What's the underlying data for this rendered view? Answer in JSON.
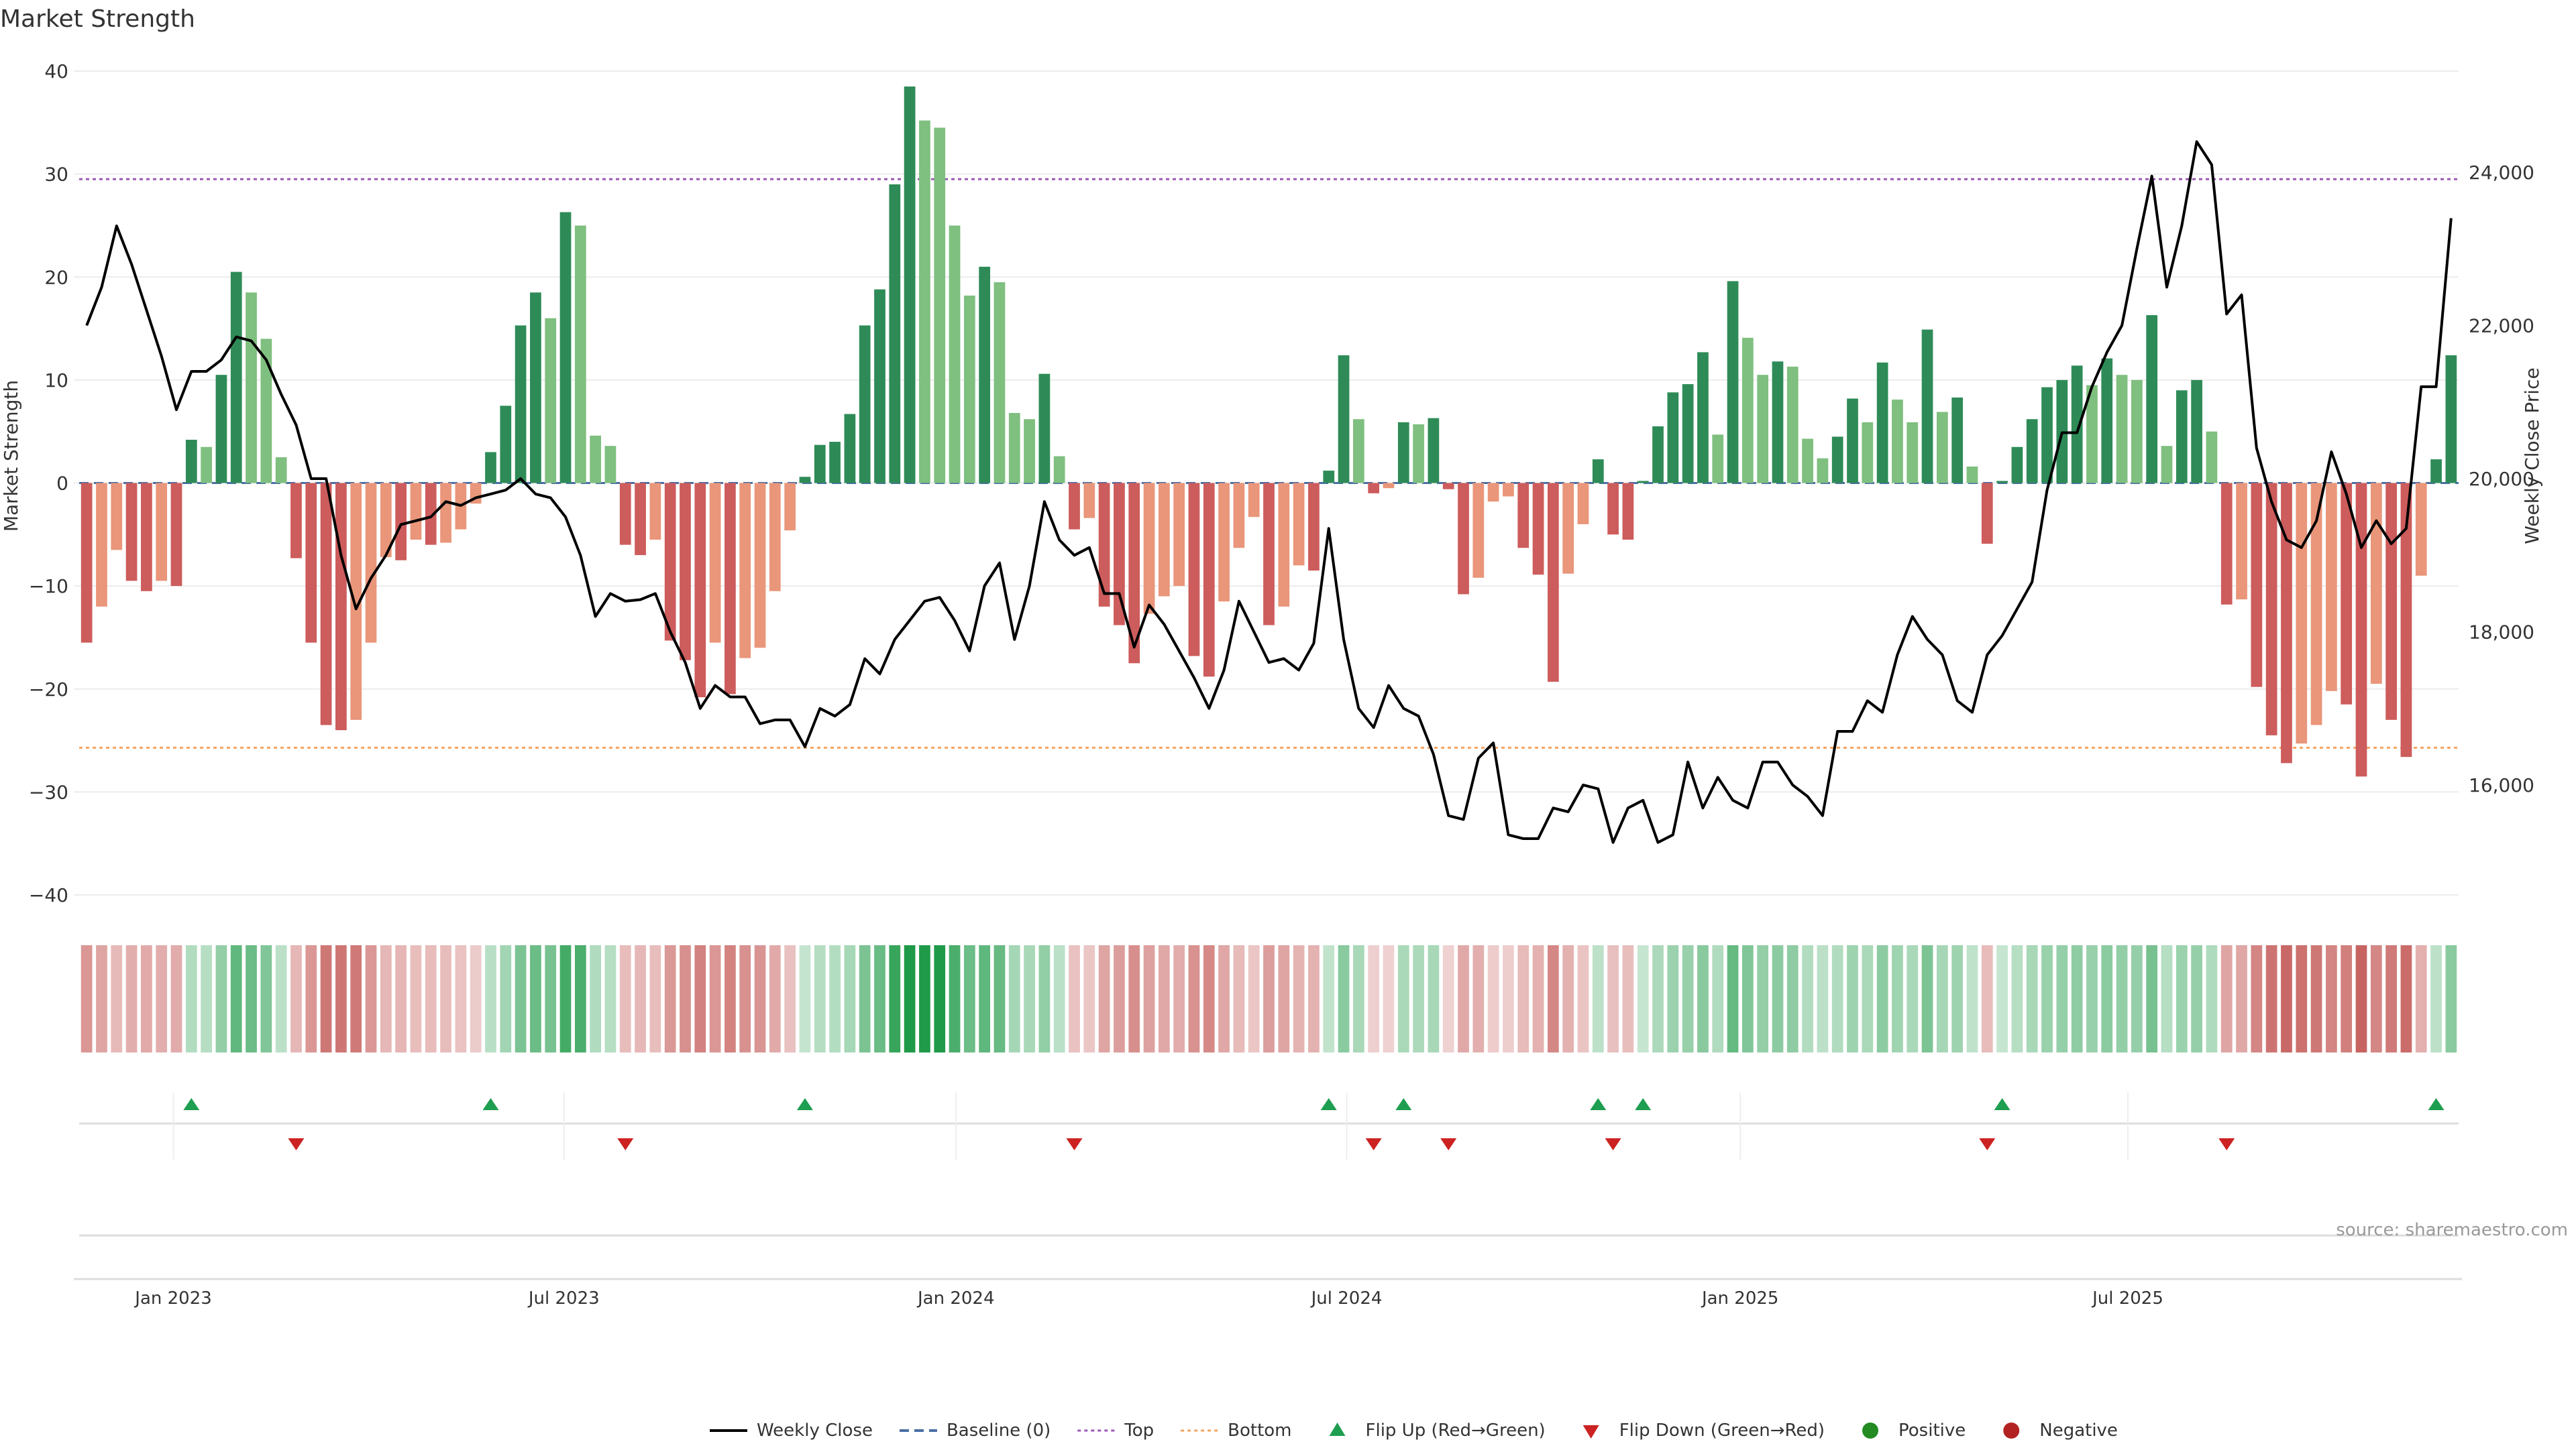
{
  "chart_data": {
    "type": "bar",
    "title": "Market Strength",
    "ylabel": "Market Strength",
    "y2label": "Weekly Close Price",
    "ylim": [
      -42,
      42
    ],
    "y2lim": [
      14500,
      25500
    ],
    "yticks": [
      40,
      30,
      20,
      10,
      0,
      -10,
      -20,
      -30,
      -40
    ],
    "yticklabels": [
      "40",
      "30",
      "20",
      "10",
      "0",
      "−10",
      "−20",
      "−30",
      "−40"
    ],
    "y2ticks": [
      16000,
      18000,
      20000,
      22000,
      24000
    ],
    "y2ticklabels": [
      "16,000",
      "18,000",
      "20,000",
      "22,000",
      "24,000"
    ],
    "xticks": [
      {
        "label": "Jan 2023",
        "index": 6.3
      },
      {
        "label": "Jul 2023",
        "index": 32.4
      },
      {
        "label": "Jan 2024",
        "index": 58.6
      },
      {
        "label": "Jul 2024",
        "index": 84.7
      },
      {
        "label": "Jan 2025",
        "index": 111.0
      },
      {
        "label": "Jul 2025",
        "index": 136.9
      }
    ],
    "top_threshold": 29.5,
    "bottom_threshold": -25.7,
    "colors": {
      "pos_strong": "#2e8b57",
      "pos_weak": "#7fbf7f",
      "neg_strong": "#cd5c5c",
      "neg_weak": "#e9967a",
      "close_line": "#000000",
      "baseline": "#4a6fa5",
      "top": "#9b59b6",
      "bottom": "#f4a460",
      "flip_up": "#1e9e50",
      "flip_down": "#cc2222"
    },
    "strength": [
      -15.5,
      -12,
      -6.5,
      -9.5,
      -10.5,
      -9.5,
      -10,
      4.2,
      3.5,
      10.5,
      20.5,
      18.5,
      14,
      2.5,
      -7.3,
      -15.5,
      -23.5,
      -24,
      -23,
      -15.5,
      -7.2,
      -7.5,
      -5.5,
      -6,
      -5.8,
      -4.5,
      -2,
      3,
      7.5,
      15.3,
      18.5,
      16,
      26.3,
      25,
      4.6,
      3.6,
      -6,
      -7,
      -5.5,
      -15.3,
      -17.2,
      -20.8,
      -15.5,
      -20.5,
      -17,
      -16,
      -10.5,
      -4.6,
      0.6,
      3.7,
      4,
      6.7,
      15.3,
      18.8,
      29,
      38.5,
      35.2,
      34.5,
      25,
      18.2,
      21,
      19.5,
      6.8,
      6.2,
      10.6,
      2.6,
      -4.5,
      -3.4,
      -12,
      -13.8,
      -17.5,
      -12.7,
      -11,
      -10,
      -16.8,
      -18.8,
      -11.5,
      -6.3,
      -3.3,
      -13.8,
      -12,
      -8,
      -8.5,
      1.2,
      12.4,
      6.2,
      -1,
      -0.5,
      5.9,
      5.7,
      6.3,
      -0.6,
      -10.8,
      -9.2,
      -1.8,
      -1.3,
      -6.3,
      -8.9,
      -19.3,
      -8.8,
      -4,
      2.3,
      -5,
      -5.5,
      0.2,
      5.5,
      8.8,
      9.6,
      12.7,
      4.7,
      19.6,
      14.1,
      10.5,
      11.8,
      11.3,
      4.3,
      2.4,
      4.5,
      8.2,
      5.9,
      11.7,
      8.1,
      5.9,
      14.9,
      6.9,
      8.3,
      1.6,
      -5.9,
      0.2,
      3.5,
      6.2,
      9.3,
      10,
      11.4,
      9.5,
      12.1,
      10.5,
      10,
      16.3,
      3.6,
      9,
      10,
      5,
      -11.8,
      -11.3,
      -19.8,
      -24.5,
      -27.2,
      -25.3,
      -23.5,
      -20.2,
      -21.5,
      -28.5,
      -19.5,
      -23,
      -26.6,
      -9,
      2.3,
      12.4
    ],
    "close": [
      22000,
      22500,
      23300,
      22800,
      22200,
      21600,
      20900,
      21400,
      21400,
      21550,
      21850,
      21800,
      21550,
      21100,
      20700,
      20000,
      20000,
      19000,
      18300,
      18700,
      19000,
      19400,
      19450,
      19500,
      19700,
      19650,
      19750,
      19800,
      19850,
      20000,
      19800,
      19750,
      19500,
      19000,
      18200,
      18500,
      18400,
      18420,
      18500,
      18000,
      17600,
      17000,
      17300,
      17150,
      17150,
      16800,
      16850,
      16850,
      16500,
      17000,
      16900,
      17050,
      17650,
      17450,
      17900,
      18150,
      18400,
      18450,
      18150,
      17750,
      18600,
      18900,
      17900,
      18600,
      19700,
      19200,
      19000,
      19100,
      18500,
      18500,
      17800,
      18350,
      18100,
      17750,
      17400,
      17000,
      17500,
      18400,
      18000,
      17600,
      17650,
      17500,
      17850,
      19350,
      17900,
      17000,
      16750,
      17300,
      17000,
      16900,
      16400,
      15600,
      15550,
      16350,
      16550,
      15350,
      15300,
      15300,
      15700,
      15650,
      16000,
      15950,
      15250,
      15700,
      15800,
      15250,
      15350,
      16300,
      15700,
      16100,
      15800,
      15700,
      16300,
      16300,
      16000,
      15850,
      15600,
      16700,
      16700,
      17100,
      16950,
      17700,
      18200,
      17900,
      17700,
      17100,
      16950,
      17700,
      17950,
      18300,
      18650,
      19850,
      20600,
      20600,
      21200,
      21650,
      22000,
      23000,
      23950,
      22500,
      23300,
      24400,
      24100,
      22150,
      22400,
      20400,
      19700,
      19200,
      19100,
      19450,
      20350,
      19800,
      19100,
      19450,
      19150,
      19350,
      21200,
      21200,
      23400
    ]
  },
  "flip_labels": {
    "flip_up": "Flip Up (Red→Green)",
    "flip_down": "Flip Down (Green→Red)"
  },
  "legend": [
    {
      "label": "Weekly Close",
      "kind": "line"
    },
    {
      "label": "Baseline (0)",
      "kind": "dash"
    },
    {
      "label": "Top",
      "kind": "dot"
    },
    {
      "label": "Bottom",
      "kind": "dot2"
    },
    {
      "label": "Flip Up (Red→Green)",
      "kind": "tri-up"
    },
    {
      "label": "Flip Down (Green→Red)",
      "kind": "tri-down"
    },
    {
      "label": "Positive",
      "kind": "dot-pos"
    },
    {
      "label": "Negative",
      "kind": "dot-neg"
    }
  ],
  "source": "source: sharemaestro.com"
}
